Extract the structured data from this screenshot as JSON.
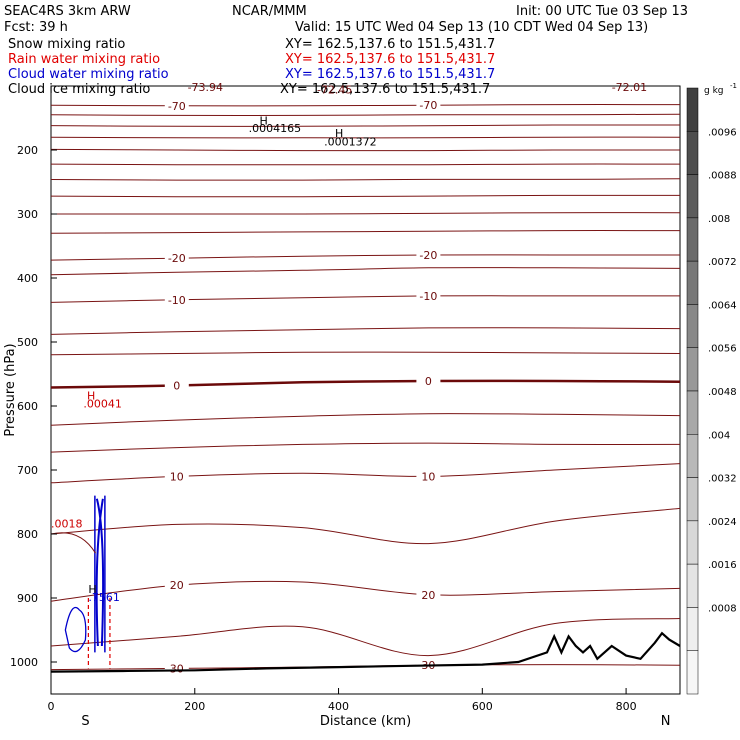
{
  "header": {
    "title_left": "SEAC4RS  3km ARW",
    "fcst": "Fcst:   39 h",
    "center": "NCAR/MMM",
    "init": "Init: 00 UTC Tue 03 Sep 13",
    "valid": "Valid: 15 UTC Wed 04 Sep 13 (10 CDT Wed 04 Sep 13)"
  },
  "fields": [
    {
      "label": "Snow mixing ratio",
      "xy": "XY= 162.5,137.6 to 151.5,431.7",
      "color": "#000000"
    },
    {
      "label": "Rain water mixing ratio",
      "xy": "XY= 162.5,137.6 to 151.5,431.7",
      "color": "#e00000"
    },
    {
      "label": "Cloud water mixing ratio",
      "xy": "XY= 162.5,137.6 to 151.5,431.7",
      "color": "#0000cc"
    },
    {
      "label": "Cloud ice mixing ratio",
      "xy": "XY= 162.5,137.6 to 151.5,431.7",
      "color": "#000000"
    }
  ],
  "chart_data": {
    "type": "cross-section contour",
    "xlabel": "Distance (km)",
    "ylabel": "Pressure (hPa)",
    "xlim": [
      0,
      875
    ],
    "ylim": [
      1050,
      100
    ],
    "x_ticks": [
      0,
      200,
      400,
      600,
      800
    ],
    "y_ticks": [
      200,
      300,
      400,
      500,
      600,
      700,
      800,
      900,
      1000
    ],
    "end_labels": {
      "left": "S",
      "right": "N"
    },
    "temperature_isotherms": [
      {
        "label": "-70",
        "p": [
          130,
          131,
          131,
          130,
          129,
          129
        ]
      },
      {
        "label": "",
        "p": [
          145,
          146,
          146,
          145,
          145,
          144
        ]
      },
      {
        "label": "",
        "p": [
          162,
          163,
          163,
          162,
          161,
          161
        ]
      },
      {
        "label": "",
        "p": [
          180,
          181,
          181,
          181,
          180,
          180
        ]
      },
      {
        "label": "",
        "p": [
          199,
          200,
          201,
          201,
          200,
          200
        ]
      },
      {
        "label": "",
        "p": [
          222,
          223,
          223,
          223,
          222,
          222
        ]
      },
      {
        "label": "",
        "p": [
          246,
          247,
          247,
          246,
          246,
          245
        ]
      },
      {
        "label": "",
        "p": [
          272,
          273,
          273,
          272,
          271,
          271
        ]
      },
      {
        "label": "",
        "p": [
          300,
          300,
          300,
          299,
          298,
          298
        ]
      },
      {
        "label": "",
        "p": [
          330,
          329,
          328,
          327,
          326,
          326
        ]
      },
      {
        "label": "-20",
        "p": [
          372,
          369,
          366,
          364,
          364,
          364
        ]
      },
      {
        "label": "",
        "p": [
          395,
          391,
          388,
          384,
          384,
          385
        ]
      },
      {
        "label": "-10",
        "p": [
          438,
          434,
          431,
          428,
          428,
          428
        ]
      },
      {
        "label": "",
        "p": [
          488,
          484,
          481,
          478,
          478,
          479
        ]
      },
      {
        "label": "",
        "p": [
          520,
          518,
          516,
          516,
          517,
          518
        ]
      },
      {
        "label": "0",
        "p": [
          571,
          568,
          563,
          561,
          561,
          562
        ]
      },
      {
        "label": "",
        "p": [
          630,
          622,
          616,
          612,
          613,
          615
        ]
      },
      {
        "label": "",
        "p": [
          672,
          665,
          660,
          658,
          660,
          660
        ]
      },
      {
        "label": "10",
        "p": [
          720,
          710,
          705,
          710,
          700,
          690
        ]
      },
      {
        "label": "",
        "p": [
          800,
          785,
          790,
          815,
          780,
          760
        ]
      },
      {
        "label": "20",
        "p": [
          905,
          880,
          875,
          895,
          890,
          885
        ]
      },
      {
        "label": "",
        "p": [
          975,
          960,
          945,
          990,
          940,
          932
        ]
      },
      {
        "label": "30",
        "p": [
          1012,
          1010,
          1008,
          1005,
          1004,
          1005
        ]
      }
    ],
    "isotherm_x": [
      0,
      175,
      350,
      525,
      700,
      875
    ],
    "extrema_labels": [
      {
        "text": "-73.94",
        "x": 190,
        "p": 108,
        "color": "#6b0a0a"
      },
      {
        "text": "-72.45",
        "x": 370,
        "p": 112,
        "color": "#6b0a0a"
      },
      {
        "text": "-72.01",
        "x": 780,
        "p": 108,
        "color": "#6b0a0a"
      },
      {
        "text": "H",
        "x": 290,
        "p": 160,
        "color": "#000000"
      },
      {
        "text": ".0004165",
        "x": 275,
        "p": 172,
        "color": "#000000"
      },
      {
        "text": "H",
        "x": 395,
        "p": 180,
        "color": "#000000"
      },
      {
        "text": ".0001372",
        "x": 380,
        "p": 193,
        "color": "#000000"
      },
      {
        "text": "H",
        "x": 50,
        "p": 590,
        "color": "#cc0000"
      },
      {
        "text": ".00041",
        "x": 45,
        "p": 602,
        "color": "#cc0000"
      },
      {
        "text": ".0018",
        "x": 0,
        "p": 790,
        "color": "#cc0000"
      },
      {
        "text": "H",
        "x": 52,
        "p": 892,
        "color": "#000000"
      },
      {
        "text": ".7561",
        "x": 52,
        "p": 905,
        "color": "#0000cc"
      }
    ],
    "terrain": {
      "x": [
        0,
        100,
        200,
        300,
        400,
        500,
        600,
        650,
        690,
        700,
        710,
        720,
        730,
        740,
        750,
        760,
        780,
        800,
        820,
        840,
        850,
        860,
        875
      ],
      "p": [
        1015,
        1014,
        1013,
        1010,
        1008,
        1006,
        1004,
        1000,
        985,
        960,
        985,
        960,
        975,
        985,
        975,
        995,
        975,
        990,
        995,
        970,
        955,
        965,
        975
      ]
    },
    "colorbar": {
      "unit": "g kg",
      "unit_sup": "-1",
      "labels": [
        ".0096",
        ".0088",
        ".008",
        ".0072",
        ".0064",
        ".0056",
        ".0048",
        ".004",
        ".0032",
        ".0024",
        ".0016",
        ".0008"
      ],
      "colors": [
        "#404040",
        "#4e4e4e",
        "#5c5c5c",
        "#6a6a6a",
        "#787878",
        "#888888",
        "#989898",
        "#a8a8a8",
        "#b8b8b8",
        "#c8c8c8",
        "#d8d8d8",
        "#e4e4e4",
        "#eeeeee",
        "#f6f6f6"
      ]
    },
    "colors": {
      "isotherm": "#7a1414",
      "zero_isotherm": "#6b0a0a",
      "terrain": "#000000",
      "cloud_water": "#0000cc",
      "rain": "#e00000"
    }
  }
}
